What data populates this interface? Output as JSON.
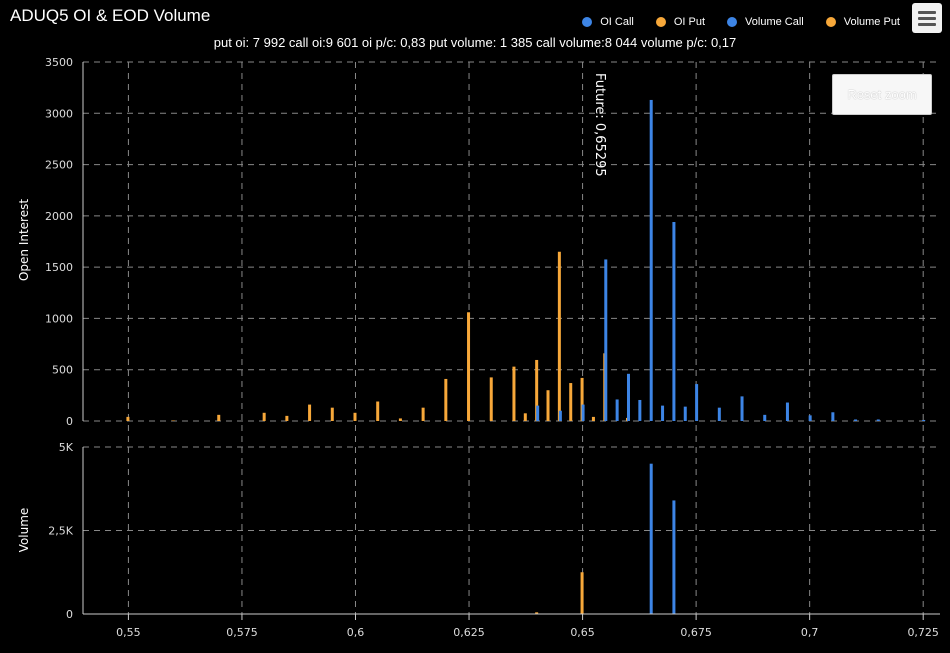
{
  "title": "ADUQ5 OI & EOD Volume",
  "subtitle": "put oi: 7 992 call oi:9 601 oi p/c: 0,83 put volume: 1 385 call volume:8 044 volume p/c: 0,17",
  "reset_zoom": "Reset zoom",
  "menu_icon": "hamburger-icon",
  "legend": [
    {
      "label": "OI Call",
      "color": "#3d85e6"
    },
    {
      "label": "OI Put",
      "color": "#f7a83a"
    },
    {
      "label": "Volume Call",
      "color": "#3d85e6"
    },
    {
      "label": "Volume Put",
      "color": "#f7a83a"
    }
  ],
  "chart_data": [
    {
      "type": "bar",
      "ylabel": "Open Interest",
      "ylim": [
        0,
        3500
      ],
      "yticks": [
        "0",
        "500",
        "1000",
        "1500",
        "2000",
        "2500",
        "3000",
        "3500"
      ],
      "annotation": "Future: 0,65295",
      "annotation_x": 0.65295,
      "grid": true,
      "series": [
        {
          "name": "OI Put",
          "color": "#f7a83a",
          "points": [
            [
              0.55,
              40
            ],
            [
              0.56,
              5
            ],
            [
              0.57,
              60
            ],
            [
              0.58,
              80
            ],
            [
              0.585,
              50
            ],
            [
              0.59,
              160
            ],
            [
              0.595,
              130
            ],
            [
              0.6,
              80
            ],
            [
              0.605,
              190
            ],
            [
              0.61,
              25
            ],
            [
              0.615,
              130
            ],
            [
              0.62,
              410
            ],
            [
              0.625,
              1060
            ],
            [
              0.63,
              425
            ],
            [
              0.635,
              530
            ],
            [
              0.6375,
              75
            ],
            [
              0.64,
              595
            ],
            [
              0.6425,
              300
            ],
            [
              0.645,
              1650
            ],
            [
              0.6475,
              370
            ],
            [
              0.65,
              420
            ],
            [
              0.6525,
              40
            ],
            [
              0.655,
              660
            ],
            [
              0.66,
              30
            ]
          ]
        },
        {
          "name": "OI Call",
          "color": "#3d85e6",
          "points": [
            [
              0.64,
              150
            ],
            [
              0.645,
              100
            ],
            [
              0.65,
              160
            ],
            [
              0.655,
              1575
            ],
            [
              0.6575,
              210
            ],
            [
              0.66,
              460
            ],
            [
              0.6625,
              205
            ],
            [
              0.665,
              3130
            ],
            [
              0.6675,
              150
            ],
            [
              0.67,
              1940
            ],
            [
              0.6725,
              140
            ],
            [
              0.675,
              360
            ],
            [
              0.68,
              130
            ],
            [
              0.685,
              240
            ],
            [
              0.69,
              60
            ],
            [
              0.695,
              180
            ],
            [
              0.7,
              55
            ],
            [
              0.705,
              85
            ],
            [
              0.71,
              15
            ],
            [
              0.715,
              15
            ],
            [
              0.725,
              10
            ]
          ]
        }
      ]
    },
    {
      "type": "bar",
      "ylabel": "Volume",
      "ylim": [
        0,
        5000
      ],
      "yticks": [
        "0",
        "2,5K",
        "5K"
      ],
      "xticks": [
        "0,55",
        "0,575",
        "0,6",
        "0,625",
        "0,65",
        "0,675",
        "0,7",
        "0,725"
      ],
      "xlim": [
        0.54,
        0.7287
      ],
      "grid": true,
      "series": [
        {
          "name": "Volume Put",
          "color": "#f7a83a",
          "points": [
            [
              0.64,
              50
            ],
            [
              0.65,
              1250
            ]
          ]
        },
        {
          "name": "Volume Call",
          "color": "#3d85e6",
          "points": [
            [
              0.665,
              4500
            ],
            [
              0.67,
              3400
            ]
          ]
        }
      ]
    }
  ]
}
